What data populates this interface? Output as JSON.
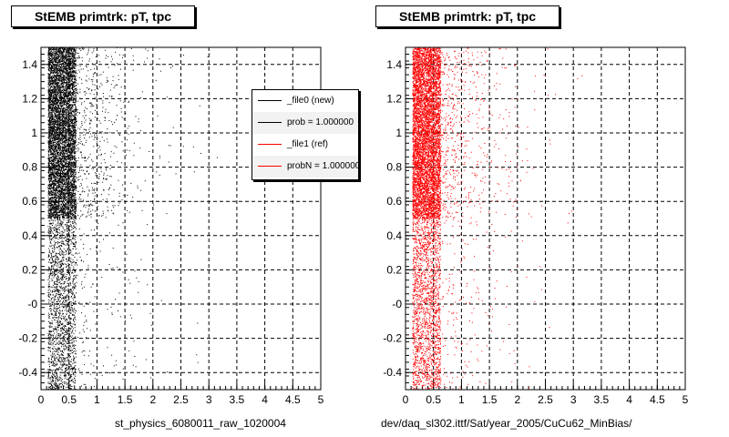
{
  "left_panel": {
    "title": "StEMB primtrk: pT, tpc",
    "footer": "st_physics_6080011_raw_1020004"
  },
  "right_panel": {
    "title": "StEMB primtrk: pT, tpc",
    "footer": "dev/daq_sl302.ittf/Sat/year_2005/CuCu62_MinBias/"
  },
  "legend": {
    "entries": [
      {
        "label": "_file0 (new)",
        "color": "#000000"
      },
      {
        "label": "prob = 1.000000",
        "color": "#000000"
      },
      {
        "label": "_file1 (ref)",
        "color": "#ff0000"
      },
      {
        "label": "probN = 1.000000",
        "color": "#ff0000"
      }
    ]
  },
  "chart_data": [
    {
      "type": "scatter",
      "title": "StEMB primtrk: pT, tpc",
      "xlabel": "st_physics_6080011_raw_1020004",
      "ylabel": "",
      "xlim": [
        0,
        5
      ],
      "ylim": [
        -0.5,
        1.5
      ],
      "x_ticks": [
        "0",
        "0.5",
        "1",
        "1.5",
        "2",
        "2.5",
        "3",
        "3.5",
        "4",
        "4.5",
        "5"
      ],
      "y_ticks": [
        "-0.4",
        "-0.2",
        "-0",
        "0.2",
        "0.4",
        "0.6",
        "0.8",
        "1",
        "1.2",
        "1.4"
      ],
      "grid": true,
      "series": [
        {
          "name": "_file0 (new)",
          "color": "#000000",
          "density": "dense at pT 0.1-0.6, tails to pT ~2; y band concentrated 0.5-1.5"
        }
      ]
    },
    {
      "type": "scatter",
      "title": "StEMB primtrk: pT, tpc",
      "xlabel": "dev/daq_sl302.ittf/Sat/year_2005/CuCu62_MinBias/",
      "ylabel": "",
      "xlim": [
        0,
        5
      ],
      "ylim": [
        -0.5,
        1.5
      ],
      "x_ticks": [
        "0",
        "0.5",
        "1",
        "1.5",
        "2",
        "2.5",
        "3",
        "3.5",
        "4",
        "4.5",
        "5"
      ],
      "y_ticks": [
        "-0.4",
        "-0.2",
        "-0",
        "0.2",
        "0.4",
        "0.6",
        "0.8",
        "1",
        "1.2",
        "1.4"
      ],
      "grid": true,
      "series": [
        {
          "name": "_file1 (ref)",
          "color": "#ff0000",
          "density": "dense at pT 0.1-0.6, tails to pT ~2; y band concentrated 0.5-1.5"
        }
      ]
    }
  ]
}
